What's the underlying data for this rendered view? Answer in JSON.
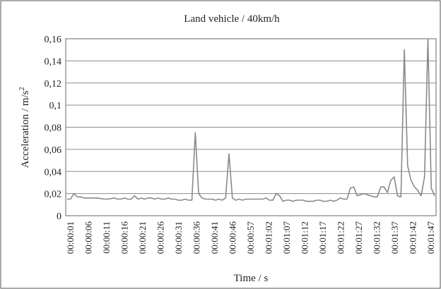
{
  "chart_data": {
    "type": "line",
    "title": "Land vehicle / 40km/h",
    "xlabel": "Time / s",
    "ylabel_main": "Acceleration  / m/s",
    "ylabel_sup": "2",
    "ylim": [
      0,
      0.16
    ],
    "yticks": [
      0,
      0.02,
      0.04,
      0.06,
      0.08,
      0.1,
      0.12,
      0.14,
      0.16
    ],
    "ytick_labels": [
      "0",
      "0,02",
      "0,04",
      "0,06",
      "0,08",
      "0,1",
      "0,12",
      "0,14",
      "0,16"
    ],
    "grid": true,
    "legend": "none",
    "line_color": "#8a8a8a",
    "xtick_labels": [
      "00:00:01",
      "00:00:06",
      "00:00:11",
      "00:00:16",
      "00:00:21",
      "00:00:26",
      "00:00:31",
      "00:00:36",
      "00:00:41",
      "00:00:46",
      "00:00:57",
      "00:01:02",
      "00:01:07",
      "00:01:12",
      "00:01:17",
      "00:01:22",
      "00:01:27",
      "00:01:32",
      "00:01:37",
      "00:01:42",
      "00:01:47"
    ],
    "series": [
      {
        "values": [
          0.015,
          0.015,
          0.02,
          0.017,
          0.017,
          0.016,
          0.016,
          0.016,
          0.016,
          0.016,
          0.0155,
          0.015,
          0.015,
          0.0155,
          0.016,
          0.015,
          0.015,
          0.016,
          0.015,
          0.015,
          0.018,
          0.015,
          0.016,
          0.015,
          0.016,
          0.016,
          0.015,
          0.016,
          0.015,
          0.015,
          0.016,
          0.015,
          0.015,
          0.014,
          0.014,
          0.015,
          0.014,
          0.014,
          0.075,
          0.02,
          0.016,
          0.015,
          0.015,
          0.015,
          0.014,
          0.015,
          0.014,
          0.016,
          0.056,
          0.016,
          0.014,
          0.015,
          0.014,
          0.015,
          0.015,
          0.015,
          0.015,
          0.015,
          0.015,
          0.016,
          0.014,
          0.014,
          0.02,
          0.018,
          0.013,
          0.014,
          0.014,
          0.013,
          0.014,
          0.014,
          0.014,
          0.013,
          0.013,
          0.013,
          0.014,
          0.014,
          0.013,
          0.013,
          0.014,
          0.013,
          0.014,
          0.016,
          0.015,
          0.015,
          0.025,
          0.026,
          0.018,
          0.019,
          0.02,
          0.019,
          0.018,
          0.017,
          0.017,
          0.026,
          0.026,
          0.021,
          0.032,
          0.035,
          0.018,
          0.017,
          0.15,
          0.045,
          0.032,
          0.026,
          0.023,
          0.018,
          0.035,
          0.16,
          0.025,
          0.018
        ]
      }
    ]
  }
}
